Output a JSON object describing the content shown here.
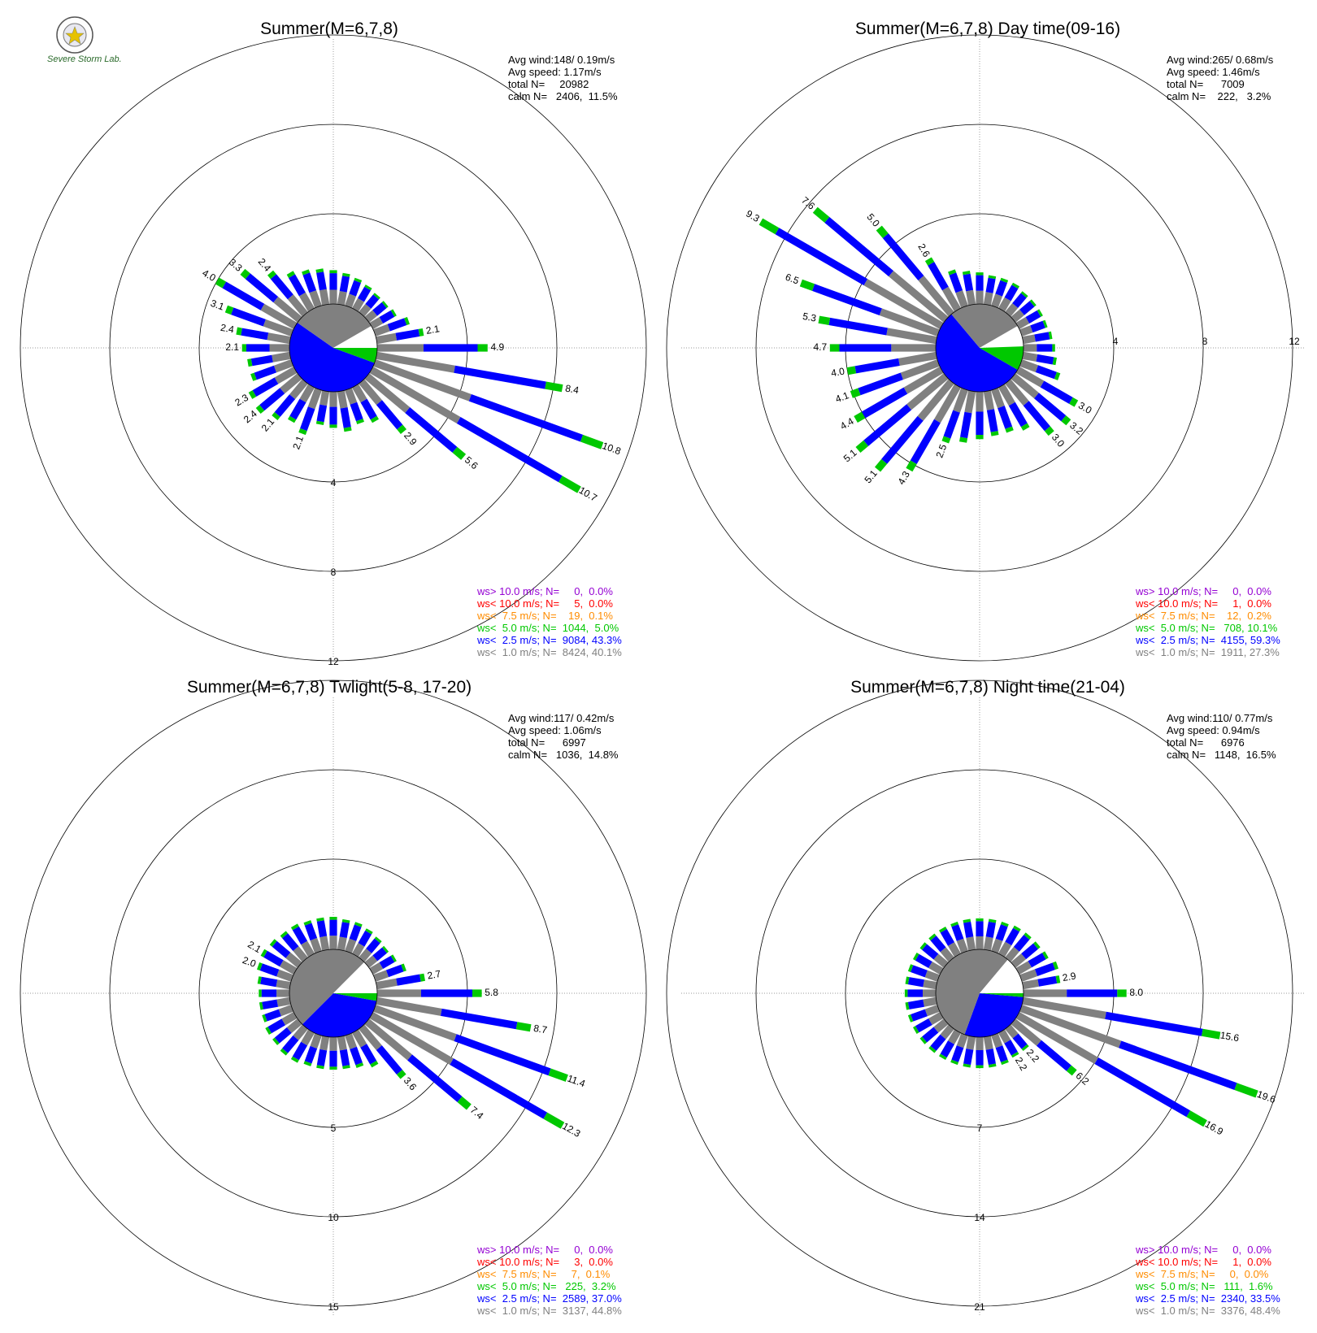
{
  "colors": {
    "over10": "#9400d3",
    "lt10": "#ff0000",
    "lt7_5": "#ff8c00",
    "lt5": "#00c800",
    "lt2_5": "#0000ff",
    "lt1": "#808080",
    "calm": "#ffffff"
  },
  "logo": {
    "text": "Severe Storm Lab."
  },
  "chart_data": [
    {
      "type": "windrose",
      "title": "Summer(M=6,7,8)",
      "avg_wind": "Avg wind:148/ 0.19m/s",
      "avg_speed": "Avg speed: 1.17m/s",
      "total_n": "total N=     20982",
      "calm_n": "calm N=   2406,  11.5%",
      "rings": [
        "4",
        "8",
        "12"
      ],
      "ring_values": [
        4,
        8,
        12
      ],
      "label_axis": "south",
      "pie": {
        "lt1_start": 305,
        "lt1_end": 60,
        "calm_end": 90,
        "lt5_end": 110
      },
      "bars": [
        {
          "dir": 0,
          "total": 1.5
        },
        {
          "dir": 10,
          "total": 1.4
        },
        {
          "dir": 20,
          "total": 1.3
        },
        {
          "dir": 30,
          "total": 1.2
        },
        {
          "dir": 40,
          "total": 1.1
        },
        {
          "dir": 50,
          "total": 1.1
        },
        {
          "dir": 60,
          "total": 1.2
        },
        {
          "dir": 70,
          "total": 1.6
        },
        {
          "dir": 80,
          "total": 2.1,
          "label": "2.1"
        },
        {
          "dir": 90,
          "total": 4.9,
          "label": "4.9"
        },
        {
          "dir": 100,
          "total": 8.4,
          "label": "8.4"
        },
        {
          "dir": 110,
          "total": 10.8,
          "label": "10.8"
        },
        {
          "dir": 120,
          "total": 10.7,
          "label": "10.7"
        },
        {
          "dir": 130,
          "total": 5.6,
          "label": "5.6"
        },
        {
          "dir": 140,
          "total": 2.9,
          "label": "2.9"
        },
        {
          "dir": 150,
          "total": 1.8
        },
        {
          "dir": 160,
          "total": 1.6
        },
        {
          "dir": 170,
          "total": 1.8
        },
        {
          "dir": 180,
          "total": 1.6
        },
        {
          "dir": 190,
          "total": 1.5
        },
        {
          "dir": 200,
          "total": 2.1,
          "label": "2.1"
        },
        {
          "dir": 210,
          "total": 1.8
        },
        {
          "dir": 220,
          "total": 2.1,
          "label": "2.1"
        },
        {
          "dir": 230,
          "total": 2.4,
          "label": "2.4"
        },
        {
          "dir": 240,
          "total": 2.3,
          "label": "2.3"
        },
        {
          "dir": 250,
          "total": 1.9
        },
        {
          "dir": 260,
          "total": 1.9
        },
        {
          "dir": 270,
          "total": 2.1,
          "label": "2.1"
        },
        {
          "dir": 280,
          "total": 2.4,
          "label": "2.4"
        },
        {
          "dir": 290,
          "total": 3.1,
          "label": "3.1"
        },
        {
          "dir": 300,
          "total": 4.0,
          "label": "4.0"
        },
        {
          "dir": 310,
          "total": 3.3,
          "label": "3.3"
        },
        {
          "dir": 320,
          "total": 2.4,
          "label": "2.4"
        },
        {
          "dir": 330,
          "total": 1.9
        },
        {
          "dir": 340,
          "total": 1.7
        },
        {
          "dir": 350,
          "total": 1.6
        }
      ],
      "legend": [
        {
          "key": "over10",
          "text": "ws> 10.0 m/s; N=     0,  0.0%"
        },
        {
          "key": "lt10",
          "text": "ws< 10.0 m/s; N=     5,  0.0%"
        },
        {
          "key": "lt7_5",
          "text": "ws<  7.5 m/s; N=    19,  0.1%"
        },
        {
          "key": "lt5",
          "text": "ws<  5.0 m/s; N=  1044,  5.0%"
        },
        {
          "key": "lt2_5",
          "text": "ws<  2.5 m/s; N=  9084, 43.3%"
        },
        {
          "key": "lt1",
          "text": "ws<  1.0 m/s; N=  8424, 40.1%"
        }
      ]
    },
    {
      "type": "windrose",
      "title": "Summer(M=6,7,8) Day time(09-16)",
      "avg_wind": "Avg wind:265/ 0.68m/s",
      "avg_speed": "Avg speed: 1.46m/s",
      "total_n": "total N=      7009",
      "calm_n": "calm N=    222,   3.2%",
      "rings": [
        "4",
        "8",
        "12"
      ],
      "ring_values": [
        4,
        8,
        12
      ],
      "label_axis": "east",
      "pie": {
        "lt1_start": 320,
        "lt1_end": 60,
        "calm_end": 88,
        "lt5_end": 120
      },
      "bars": [
        {
          "dir": 0,
          "total": 1.4
        },
        {
          "dir": 10,
          "total": 1.3
        },
        {
          "dir": 20,
          "total": 1.3
        },
        {
          "dir": 30,
          "total": 1.3
        },
        {
          "dir": 40,
          "total": 1.2
        },
        {
          "dir": 50,
          "total": 1.2
        },
        {
          "dir": 60,
          "total": 1.2
        },
        {
          "dir": 70,
          "total": 1.2
        },
        {
          "dir": 80,
          "total": 1.3
        },
        {
          "dir": 90,
          "total": 1.4
        },
        {
          "dir": 100,
          "total": 1.5
        },
        {
          "dir": 110,
          "total": 1.8
        },
        {
          "dir": 120,
          "total": 3.0,
          "label": "3.0"
        },
        {
          "dir": 130,
          "total": 3.2,
          "label": "3.2"
        },
        {
          "dir": 140,
          "total": 3.0,
          "label": "3.0"
        },
        {
          "dir": 150,
          "total": 2.2
        },
        {
          "dir": 160,
          "total": 2.0
        },
        {
          "dir": 170,
          "total": 2.0
        },
        {
          "dir": 180,
          "total": 2.1
        },
        {
          "dir": 190,
          "total": 2.3
        },
        {
          "dir": 200,
          "total": 2.5,
          "label": "2.5"
        },
        {
          "dir": 210,
          "total": 4.3,
          "label": "4.3"
        },
        {
          "dir": 220,
          "total": 5.1,
          "label": "5.1"
        },
        {
          "dir": 230,
          "total": 5.1,
          "label": "5.1"
        },
        {
          "dir": 240,
          "total": 4.4,
          "label": "4.4"
        },
        {
          "dir": 250,
          "total": 4.1,
          "label": "4.1"
        },
        {
          "dir": 260,
          "total": 4.0,
          "label": "4.0"
        },
        {
          "dir": 270,
          "total": 4.7,
          "label": "4.7"
        },
        {
          "dir": 280,
          "total": 5.3,
          "label": "5.3"
        },
        {
          "dir": 290,
          "total": 6.5,
          "label": "6.5"
        },
        {
          "dir": 300,
          "total": 9.3,
          "label": "9.3"
        },
        {
          "dir": 310,
          "total": 7.6,
          "label": "7.6"
        },
        {
          "dir": 320,
          "total": 5.0,
          "label": "5.0"
        },
        {
          "dir": 330,
          "total": 2.6,
          "label": "2.6"
        },
        {
          "dir": 340,
          "total": 1.7
        },
        {
          "dir": 350,
          "total": 1.5
        }
      ],
      "legend": [
        {
          "key": "over10",
          "text": "ws> 10.0 m/s; N=     0,  0.0%"
        },
        {
          "key": "lt10",
          "text": "ws< 10.0 m/s; N=     1,  0.0%"
        },
        {
          "key": "lt7_5",
          "text": "ws<  7.5 m/s; N=    12,  0.2%"
        },
        {
          "key": "lt5",
          "text": "ws<  5.0 m/s; N=   708, 10.1%"
        },
        {
          "key": "lt2_5",
          "text": "ws<  2.5 m/s; N=  4155, 59.3%"
        },
        {
          "key": "lt1",
          "text": "ws<  1.0 m/s; N=  1911, 27.3%"
        }
      ]
    },
    {
      "type": "windrose",
      "title": "Summer(M=6,7,8) Twlight(5-8, 17-20)",
      "avg_wind": "Avg wind:117/ 0.42m/s",
      "avg_speed": "Avg speed: 1.06m/s",
      "total_n": "total N=      6997",
      "calm_n": "calm N=   1036,  14.8%",
      "rings": [
        "5",
        "10",
        "15"
      ],
      "ring_values": [
        5,
        10,
        15
      ],
      "label_axis": "south",
      "pie": {
        "lt1_start": 225,
        "lt1_end": 45,
        "calm_end": 90,
        "lt5_end": 100
      },
      "bars": [
        {
          "dir": 0,
          "total": 1.8
        },
        {
          "dir": 10,
          "total": 1.7
        },
        {
          "dir": 20,
          "total": 1.7
        },
        {
          "dir": 30,
          "total": 1.6
        },
        {
          "dir": 40,
          "total": 1.5
        },
        {
          "dir": 50,
          "total": 1.4
        },
        {
          "dir": 60,
          "total": 1.5
        },
        {
          "dir": 70,
          "total": 1.8
        },
        {
          "dir": 80,
          "total": 2.7,
          "label": "2.7"
        },
        {
          "dir": 90,
          "total": 5.8,
          "label": "5.8"
        },
        {
          "dir": 100,
          "total": 8.7,
          "label": "8.7"
        },
        {
          "dir": 110,
          "total": 11.4,
          "label": "11.4"
        },
        {
          "dir": 120,
          "total": 12.3,
          "label": "12.3"
        },
        {
          "dir": 130,
          "total": 7.4,
          "label": "7.4"
        },
        {
          "dir": 140,
          "total": 3.6,
          "label": "3.6"
        },
        {
          "dir": 150,
          "total": 2.2
        },
        {
          "dir": 160,
          "total": 1.9
        },
        {
          "dir": 170,
          "total": 1.8
        },
        {
          "dir": 180,
          "total": 1.8
        },
        {
          "dir": 190,
          "total": 1.8
        },
        {
          "dir": 200,
          "total": 1.8
        },
        {
          "dir": 210,
          "total": 1.9
        },
        {
          "dir": 220,
          "total": 1.9
        },
        {
          "dir": 230,
          "total": 1.8
        },
        {
          "dir": 240,
          "total": 1.8
        },
        {
          "dir": 250,
          "total": 1.7
        },
        {
          "dir": 260,
          "total": 1.7
        },
        {
          "dir": 270,
          "total": 1.7
        },
        {
          "dir": 280,
          "total": 1.8
        },
        {
          "dir": 290,
          "total": 2.0,
          "label": "2.0"
        },
        {
          "dir": 300,
          "total": 2.1,
          "label": "2.1"
        },
        {
          "dir": 310,
          "total": 2.0
        },
        {
          "dir": 320,
          "total": 1.9
        },
        {
          "dir": 330,
          "total": 1.9
        },
        {
          "dir": 340,
          "total": 1.8
        },
        {
          "dir": 350,
          "total": 1.8
        }
      ],
      "legend": [
        {
          "key": "over10",
          "text": "ws> 10.0 m/s; N=     0,  0.0%"
        },
        {
          "key": "lt10",
          "text": "ws< 10.0 m/s; N=     3,  0.0%"
        },
        {
          "key": "lt7_5",
          "text": "ws<  7.5 m/s; N=     7,  0.1%"
        },
        {
          "key": "lt5",
          "text": "ws<  5.0 m/s; N=   225,  3.2%"
        },
        {
          "key": "lt2_5",
          "text": "ws<  2.5 m/s; N=  2589, 37.0%"
        },
        {
          "key": "lt1",
          "text": "ws<  1.0 m/s; N=  3137, 44.8%"
        }
      ]
    },
    {
      "type": "windrose",
      "title": "Summer(M=6,7,8) Night time(21-04)",
      "avg_wind": "Avg wind:110/ 0.77m/s",
      "avg_speed": "Avg speed: 0.94m/s",
      "total_n": "total N=      6976",
      "calm_n": "calm N=   1148,  16.5%",
      "rings": [
        "7",
        "14",
        "21"
      ],
      "ring_values": [
        7,
        14,
        21
      ],
      "label_axis": "south",
      "pie": {
        "lt1_start": 200,
        "lt1_end": 40,
        "calm_end": 90,
        "lt5_end": 95
      },
      "bars": [
        {
          "dir": 0,
          "total": 2.4
        },
        {
          "dir": 10,
          "total": 2.4
        },
        {
          "dir": 20,
          "total": 2.4
        },
        {
          "dir": 30,
          "total": 2.5
        },
        {
          "dir": 40,
          "total": 2.5
        },
        {
          "dir": 50,
          "total": 2.5
        },
        {
          "dir": 60,
          "total": 2.6
        },
        {
          "dir": 70,
          "total": 3.0
        },
        {
          "dir": 80,
          "total": 2.9,
          "label": "2.9"
        },
        {
          "dir": 90,
          "total": 8.0,
          "label": "8.0"
        },
        {
          "dir": 100,
          "total": 15.6,
          "label": "15.6"
        },
        {
          "dir": 110,
          "total": 19.6,
          "label": "19.6"
        },
        {
          "dir": 120,
          "total": 16.9,
          "label": "16.9"
        },
        {
          "dir": 130,
          "total": 6.2,
          "label": "6.2"
        },
        {
          "dir": 140,
          "total": 2.2,
          "label": "2.2"
        },
        {
          "dir": 150,
          "total": 2.2,
          "label": "2.2"
        },
        {
          "dir": 160,
          "total": 2.4
        },
        {
          "dir": 170,
          "total": 2.4
        },
        {
          "dir": 180,
          "total": 2.4
        },
        {
          "dir": 190,
          "total": 2.4
        },
        {
          "dir": 200,
          "total": 2.4
        },
        {
          "dir": 210,
          "total": 2.4
        },
        {
          "dir": 220,
          "total": 2.4
        },
        {
          "dir": 230,
          "total": 2.4
        },
        {
          "dir": 240,
          "total": 2.4
        },
        {
          "dir": 250,
          "total": 2.4
        },
        {
          "dir": 260,
          "total": 2.4
        },
        {
          "dir": 270,
          "total": 2.4
        },
        {
          "dir": 280,
          "total": 2.4
        },
        {
          "dir": 290,
          "total": 2.4
        },
        {
          "dir": 300,
          "total": 2.4
        },
        {
          "dir": 310,
          "total": 2.4
        },
        {
          "dir": 320,
          "total": 2.4
        },
        {
          "dir": 330,
          "total": 2.4
        },
        {
          "dir": 340,
          "total": 2.4
        },
        {
          "dir": 350,
          "total": 2.4
        }
      ],
      "legend": [
        {
          "key": "over10",
          "text": "ws> 10.0 m/s; N=     0,  0.0%"
        },
        {
          "key": "lt10",
          "text": "ws< 10.0 m/s; N=     1,  0.0%"
        },
        {
          "key": "lt7_5",
          "text": "ws<  7.5 m/s; N=     0,  0.0%"
        },
        {
          "key": "lt5",
          "text": "ws<  5.0 m/s; N=   111,  1.6%"
        },
        {
          "key": "lt2_5",
          "text": "ws<  2.5 m/s; N=  2340, 33.5%"
        },
        {
          "key": "lt1",
          "text": "ws<  1.0 m/s; N=  3376, 48.4%"
        }
      ]
    }
  ]
}
